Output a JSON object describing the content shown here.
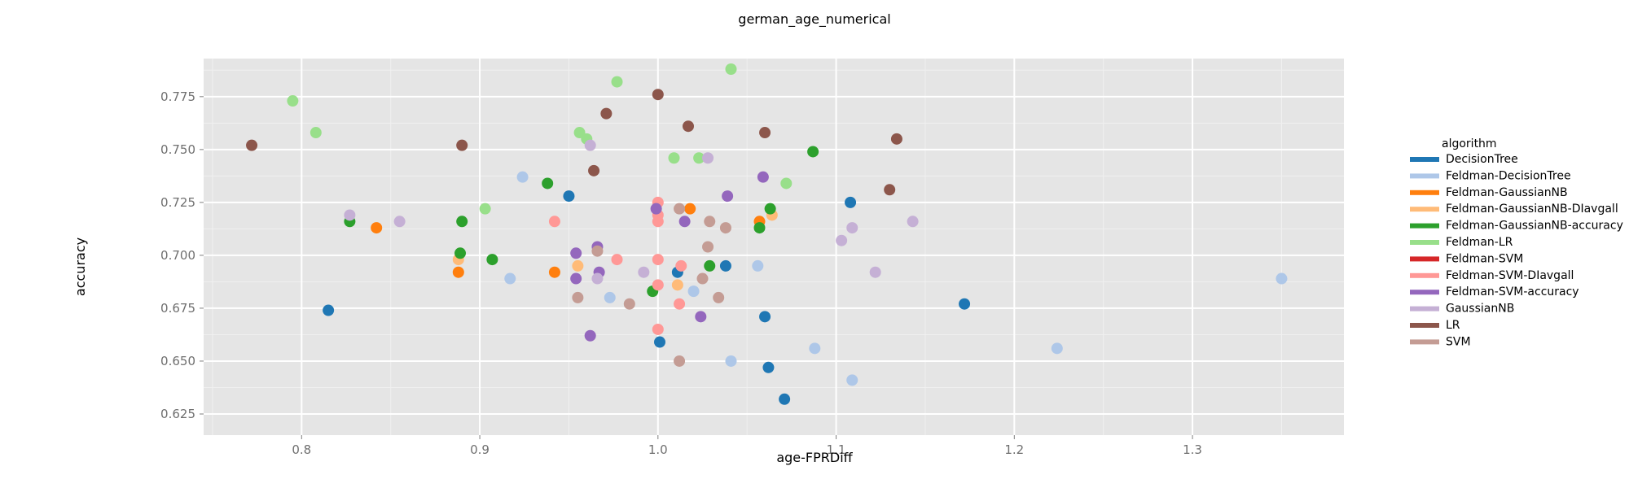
{
  "chart_data": {
    "type": "scatter",
    "title": "german_age_numerical",
    "xlabel": "age-FPRDiff",
    "ylabel": "accuracy",
    "xlim": [
      0.745,
      1.385
    ],
    "ylim": [
      0.615,
      0.793
    ],
    "x_ticks": [
      0.8,
      0.9,
      1.0,
      1.1,
      1.2,
      1.3
    ],
    "x_tick_labels": [
      "0.8",
      "0.9",
      "1.0",
      "1.1",
      "1.2",
      "1.3"
    ],
    "y_ticks": [
      0.625,
      0.65,
      0.675,
      0.7,
      0.725,
      0.75,
      0.775
    ],
    "y_tick_labels": [
      "0.625",
      "0.650",
      "0.675",
      "0.700",
      "0.725",
      "0.750",
      "0.775"
    ],
    "grid": true,
    "background": "#e5e5e5",
    "legend": {
      "title": "algorithm",
      "position": "right"
    },
    "series": [
      {
        "name": "DecisionTree",
        "color": "#1f77b4",
        "points": [
          [
            0.815,
            0.674
          ],
          [
            0.95,
            0.728
          ],
          [
            1.001,
            0.659
          ],
          [
            1.011,
            0.692
          ],
          [
            1.038,
            0.695
          ],
          [
            1.06,
            0.671
          ],
          [
            1.062,
            0.647
          ],
          [
            1.071,
            0.632
          ],
          [
            1.108,
            0.725
          ],
          [
            1.172,
            0.677
          ]
        ]
      },
      {
        "name": "Feldman-DecisionTree",
        "color": "#aec7e8",
        "points": [
          [
            0.917,
            0.689
          ],
          [
            0.924,
            0.737
          ],
          [
            0.973,
            0.68
          ],
          [
            1.02,
            0.683
          ],
          [
            1.041,
            0.65
          ],
          [
            1.056,
            0.695
          ],
          [
            1.088,
            0.656
          ],
          [
            1.109,
            0.641
          ],
          [
            1.224,
            0.656
          ],
          [
            1.35,
            0.689
          ]
        ]
      },
      {
        "name": "Feldman-GaussianNB",
        "color": "#ff7f0e",
        "points": [
          [
            0.842,
            0.713
          ],
          [
            0.888,
            0.692
          ],
          [
            0.942,
            0.692
          ],
          [
            1.018,
            0.722
          ],
          [
            1.057,
            0.716
          ]
        ]
      },
      {
        "name": "Feldman-GaussianNB-DIavgall",
        "color": "#ffbb78",
        "points": [
          [
            0.888,
            0.698
          ],
          [
            0.955,
            0.695
          ],
          [
            1.011,
            0.686
          ],
          [
            1.064,
            0.719
          ]
        ]
      },
      {
        "name": "Feldman-GaussianNB-accuracy",
        "color": "#2ca02c",
        "points": [
          [
            0.827,
            0.716
          ],
          [
            0.889,
            0.701
          ],
          [
            0.89,
            0.716
          ],
          [
            0.907,
            0.698
          ],
          [
            0.938,
            0.734
          ],
          [
            0.997,
            0.683
          ],
          [
            1.029,
            0.695
          ],
          [
            1.057,
            0.713
          ],
          [
            1.063,
            0.722
          ],
          [
            1.087,
            0.749
          ]
        ]
      },
      {
        "name": "Feldman-LR",
        "color": "#98df8a",
        "points": [
          [
            0.795,
            0.773
          ],
          [
            0.808,
            0.758
          ],
          [
            0.903,
            0.722
          ],
          [
            0.956,
            0.758
          ],
          [
            0.96,
            0.755
          ],
          [
            0.977,
            0.782
          ],
          [
            1.009,
            0.746
          ],
          [
            1.023,
            0.746
          ],
          [
            1.041,
            0.788
          ],
          [
            1.072,
            0.734
          ]
        ]
      },
      {
        "name": "Feldman-SVM",
        "color": "#d62728",
        "points": []
      },
      {
        "name": "Feldman-SVM-DIavgall",
        "color": "#ff9896",
        "points": [
          [
            0.942,
            0.716
          ],
          [
            0.977,
            0.698
          ],
          [
            1.0,
            0.725
          ],
          [
            1.0,
            0.719
          ],
          [
            1.0,
            0.716
          ],
          [
            1.0,
            0.698
          ],
          [
            1.0,
            0.686
          ],
          [
            1.0,
            0.665
          ],
          [
            1.012,
            0.677
          ],
          [
            1.013,
            0.695
          ]
        ]
      },
      {
        "name": "Feldman-SVM-accuracy",
        "color": "#9467bd",
        "points": [
          [
            0.954,
            0.701
          ],
          [
            0.954,
            0.689
          ],
          [
            0.962,
            0.662
          ],
          [
            0.966,
            0.704
          ],
          [
            0.967,
            0.692
          ],
          [
            0.999,
            0.722
          ],
          [
            1.015,
            0.716
          ],
          [
            1.024,
            0.671
          ],
          [
            1.039,
            0.728
          ],
          [
            1.059,
            0.737
          ]
        ]
      },
      {
        "name": "GaussianNB",
        "color": "#c5b0d5",
        "points": [
          [
            0.827,
            0.719
          ],
          [
            0.855,
            0.716
          ],
          [
            0.962,
            0.752
          ],
          [
            0.966,
            0.689
          ],
          [
            0.992,
            0.692
          ],
          [
            1.028,
            0.746
          ],
          [
            1.103,
            0.707
          ],
          [
            1.109,
            0.713
          ],
          [
            1.122,
            0.692
          ],
          [
            1.143,
            0.716
          ]
        ]
      },
      {
        "name": "LR",
        "color": "#8c564b",
        "points": [
          [
            0.772,
            0.752
          ],
          [
            0.89,
            0.752
          ],
          [
            0.964,
            0.74
          ],
          [
            0.971,
            0.767
          ],
          [
            1.0,
            0.776
          ],
          [
            1.017,
            0.761
          ],
          [
            1.06,
            0.758
          ],
          [
            1.13,
            0.731
          ],
          [
            1.134,
            0.755
          ]
        ]
      },
      {
        "name": "SVM",
        "color": "#c49c94",
        "points": [
          [
            0.955,
            0.68
          ],
          [
            0.966,
            0.702
          ],
          [
            0.984,
            0.677
          ],
          [
            1.012,
            0.65
          ],
          [
            1.012,
            0.722
          ],
          [
            1.025,
            0.689
          ],
          [
            1.028,
            0.704
          ],
          [
            1.029,
            0.716
          ],
          [
            1.034,
            0.68
          ],
          [
            1.038,
            0.713
          ]
        ]
      }
    ]
  }
}
